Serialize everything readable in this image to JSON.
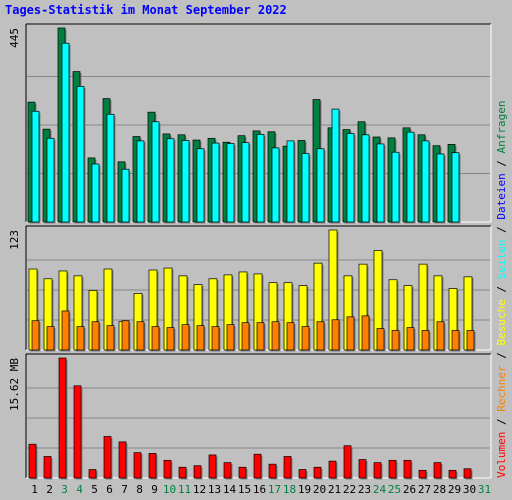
{
  "title": "Tages-Statistik im Monat September 2022",
  "colors": {
    "anfragen": "#008040",
    "dateien": "#0000FF",
    "seiten": "#00FFFF",
    "besuche": "#FFFF00",
    "rechner": "#FF8000",
    "volumen": "#FF0000",
    "weekend_label": "#008040",
    "weekday_label": "#000000",
    "background": "#C0C0C0"
  },
  "legend": {
    "separator": " / ",
    "top": [
      {
        "key": "anfragen",
        "label": "Anfragen"
      },
      {
        "key": "dateien",
        "label": "Dateien"
      },
      {
        "key": "seiten",
        "label": "Seiten"
      },
      {
        "key": "besuche",
        "label": "Besuche"
      },
      {
        "key": "rechner",
        "label": "Rechner"
      },
      {
        "key": "volumen",
        "label": "Volumen"
      }
    ]
  },
  "chart_data": {
    "type": "bar",
    "x": [
      "1",
      "2",
      "3",
      "4",
      "5",
      "6",
      "7",
      "8",
      "9",
      "10",
      "11",
      "12",
      "13",
      "14",
      "15",
      "16",
      "17",
      "18",
      "19",
      "20",
      "21",
      "22",
      "23",
      "24",
      "25",
      "26",
      "27",
      "28",
      "29",
      "30",
      "31"
    ],
    "weekend_days": [
      "3",
      "4",
      "10",
      "11",
      "17",
      "18",
      "24",
      "25",
      "31"
    ],
    "panels": [
      {
        "name": "hits",
        "ytick": "445",
        "ymax": 445,
        "series": [
          {
            "name": "Anfragen",
            "key": "anfragen",
            "values": [
              275,
              213,
              445,
              345,
              147,
              283,
              138,
              196,
              252,
              202,
              200,
              188,
              192,
              183,
              198,
              209,
              207,
              174,
              187,
              281,
              216,
              212,
              230,
              195,
              193,
              216,
              200,
              175,
              178,
              null,
              null
            ]
          },
          {
            "name": "Dateien",
            "key": "dateien",
            "values": [
              254,
              192,
              410,
              311,
              133,
              247,
              121,
              186,
              230,
              191,
              187,
              168,
              181,
              180,
              182,
              201,
              170,
              186,
              157,
              168,
              259,
              203,
              200,
              179,
              160,
              206,
              186,
              156,
              159,
              null,
              null
            ]
          }
        ]
      },
      {
        "name": "visits",
        "ytick": "123",
        "ymax": 123,
        "series": [
          {
            "name": "Besuche",
            "key": "besuche",
            "values": [
              83,
              73,
              81,
              76,
              61,
              83,
              29,
              58,
              82,
              84,
              76,
              67,
              73,
              77,
              80,
              78,
              69,
              69,
              66,
              89,
              123,
              76,
              88,
              102,
              72,
              66,
              88,
              76,
              63,
              75,
              null
            ]
          },
          {
            "name": "Rechner",
            "key": "rechner",
            "values": [
              30,
              24,
              40,
              24,
              29,
              25,
              30,
              29,
              24,
              23,
              26,
              25,
              24,
              26,
              28,
              28,
              29,
              28,
              24,
              29,
              31,
              34,
              35,
              22,
              20,
              23,
              20,
              29,
              20,
              20,
              null
            ]
          }
        ]
      },
      {
        "name": "volume",
        "ytick": "15.62 MB",
        "ymax": 15.62,
        "series": [
          {
            "name": "Volumen",
            "key": "volumen",
            "values": [
              4.4,
              2.8,
              15.62,
              12.0,
              1.1,
              5.4,
              4.7,
              3.3,
              3.2,
              2.3,
              1.4,
              1.6,
              3.0,
              2.0,
              1.4,
              3.1,
              1.8,
              2.8,
              1.1,
              1.4,
              2.2,
              4.2,
              2.4,
              2.0,
              2.3,
              2.3,
              1.0,
              2.0,
              1.0,
              1.2,
              null
            ]
          }
        ]
      }
    ]
  }
}
